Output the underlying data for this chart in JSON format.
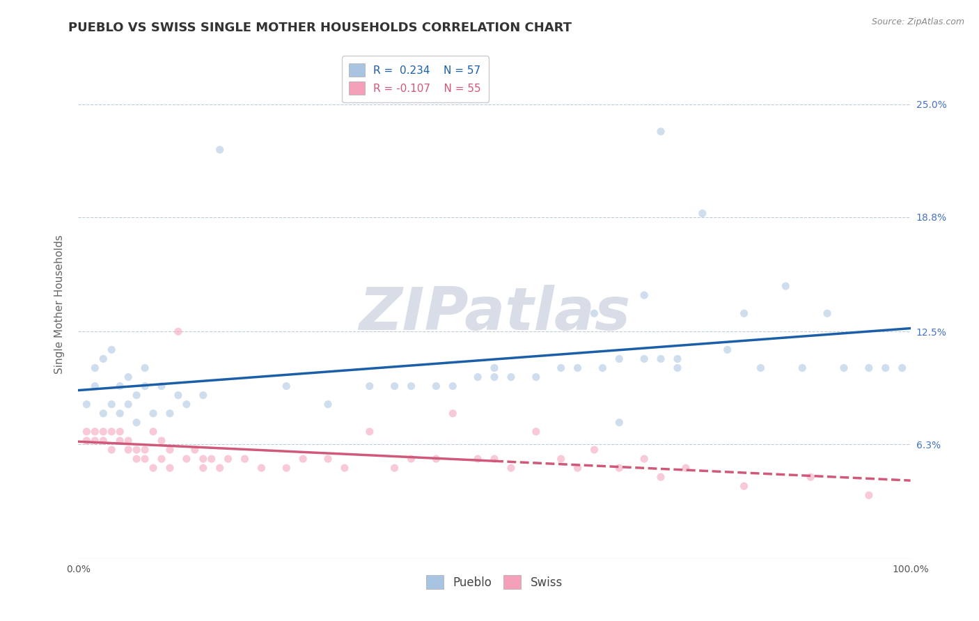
{
  "title": "PUEBLO VS SWISS SINGLE MOTHER HOUSEHOLDS CORRELATION CHART",
  "source": "Source: ZipAtlas.com",
  "ylabel": "Single Mother Households",
  "xlim": [
    0,
    100
  ],
  "ylim": [
    0,
    28
  ],
  "ytick_vals": [
    6.3,
    12.5,
    18.8,
    25.0
  ],
  "ytick_labels": [
    "6.3%",
    "12.5%",
    "18.8%",
    "25.0%"
  ],
  "xtick_vals": [
    0,
    100
  ],
  "xtick_labels": [
    "0.0%",
    "100.0%"
  ],
  "pueblo_color": "#a8c4e0",
  "swiss_color": "#f4a0b8",
  "pueblo_line_color": "#1a5fa8",
  "swiss_line_color": "#d05878",
  "background_color": "#ffffff",
  "watermark_color": "#d8dde8",
  "grid_color": "#c0cad8",
  "title_fontsize": 13,
  "axis_fontsize": 11,
  "tick_fontsize": 10,
  "legend_fontsize": 11,
  "scatter_size": 65,
  "scatter_alpha": 0.55,
  "line_width": 2.5,
  "pueblo_x": [
    1,
    2,
    2,
    3,
    3,
    4,
    4,
    5,
    5,
    6,
    6,
    7,
    7,
    8,
    8,
    9,
    10,
    11,
    12,
    13,
    15,
    17,
    25,
    30,
    35,
    38,
    40,
    43,
    45,
    48,
    50,
    52,
    55,
    58,
    60,
    62,
    63,
    65,
    68,
    70,
    72,
    75,
    78,
    80,
    82,
    85,
    87,
    90,
    92,
    95,
    97,
    99,
    50,
    68,
    70,
    72,
    65
  ],
  "pueblo_y": [
    8.5,
    9.5,
    10.5,
    8.0,
    11.0,
    8.5,
    11.5,
    8.0,
    9.5,
    8.5,
    10.0,
    7.5,
    9.0,
    9.5,
    10.5,
    8.0,
    9.5,
    8.0,
    9.0,
    8.5,
    9.0,
    22.5,
    9.5,
    8.5,
    9.5,
    9.5,
    9.5,
    9.5,
    9.5,
    10.0,
    10.0,
    10.0,
    10.0,
    10.5,
    10.5,
    13.5,
    10.5,
    11.0,
    14.5,
    23.5,
    11.0,
    19.0,
    11.5,
    13.5,
    10.5,
    15.0,
    10.5,
    13.5,
    10.5,
    10.5,
    10.5,
    10.5,
    10.5,
    11.0,
    11.0,
    10.5,
    7.5
  ],
  "swiss_x": [
    1,
    1,
    2,
    2,
    3,
    3,
    4,
    4,
    5,
    5,
    6,
    6,
    7,
    7,
    8,
    8,
    9,
    9,
    10,
    10,
    11,
    11,
    12,
    13,
    14,
    15,
    15,
    16,
    17,
    18,
    20,
    22,
    25,
    27,
    30,
    32,
    35,
    38,
    40,
    43,
    45,
    48,
    50,
    52,
    55,
    58,
    60,
    62,
    65,
    68,
    70,
    73,
    80,
    88,
    95
  ],
  "swiss_y": [
    7.0,
    6.5,
    6.5,
    7.0,
    6.5,
    7.0,
    6.0,
    7.0,
    6.5,
    7.0,
    6.0,
    6.5,
    5.5,
    6.0,
    6.0,
    5.5,
    5.0,
    7.0,
    6.5,
    5.5,
    5.0,
    6.0,
    12.5,
    5.5,
    6.0,
    5.0,
    5.5,
    5.5,
    5.0,
    5.5,
    5.5,
    5.0,
    5.0,
    5.5,
    5.5,
    5.0,
    7.0,
    5.0,
    5.5,
    5.5,
    8.0,
    5.5,
    5.5,
    5.0,
    7.0,
    5.5,
    5.0,
    6.0,
    5.0,
    5.5,
    4.5,
    5.0,
    4.0,
    4.5,
    3.5
  ],
  "right_tick_color": "#4472c4",
  "watermark_text": "ZIPatlas"
}
